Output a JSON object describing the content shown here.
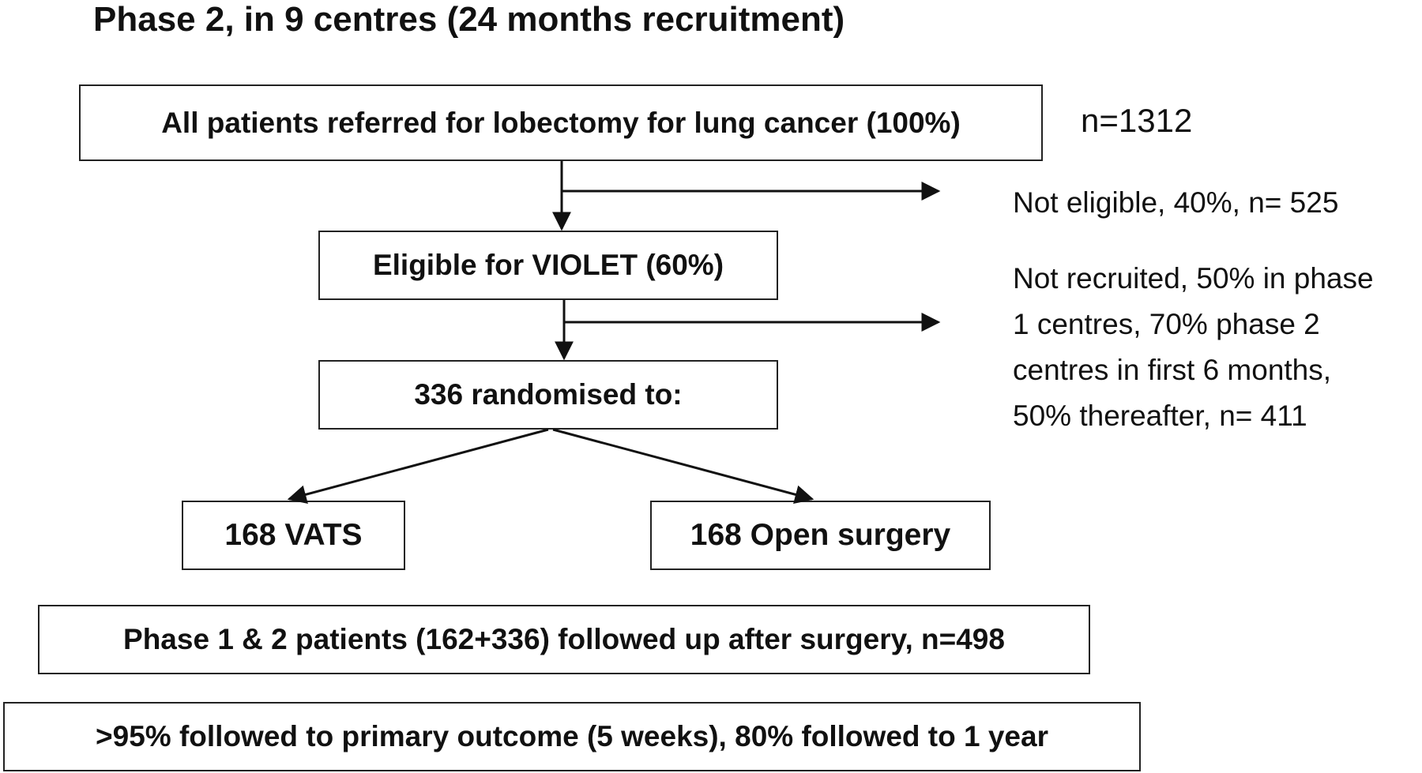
{
  "title": "Phase 2, in 9 centres (24 months recruitment)",
  "boxes": {
    "all_patients": "All patients referred for lobectomy for lung cancer (100%)",
    "eligible": "Eligible for VIOLET (60%)",
    "randomised": "336 randomised to:",
    "vats": "168 VATS",
    "open": "168 Open surgery",
    "followed_up": "Phase 1 & 2 patients (162+336) followed up after surgery, n=498",
    "outcome": ">95% followed to primary outcome (5 weeks), 80% followed to 1 year"
  },
  "notes": {
    "total_n": "n=1312",
    "not_eligible": "Not eligible, 40%, n= 525",
    "not_recruited": [
      "Not recruited, 50% in phase",
      "1 centres, 70% phase 2",
      "centres in first 6 months,",
      "50% thereafter, n= 411"
    ]
  }
}
